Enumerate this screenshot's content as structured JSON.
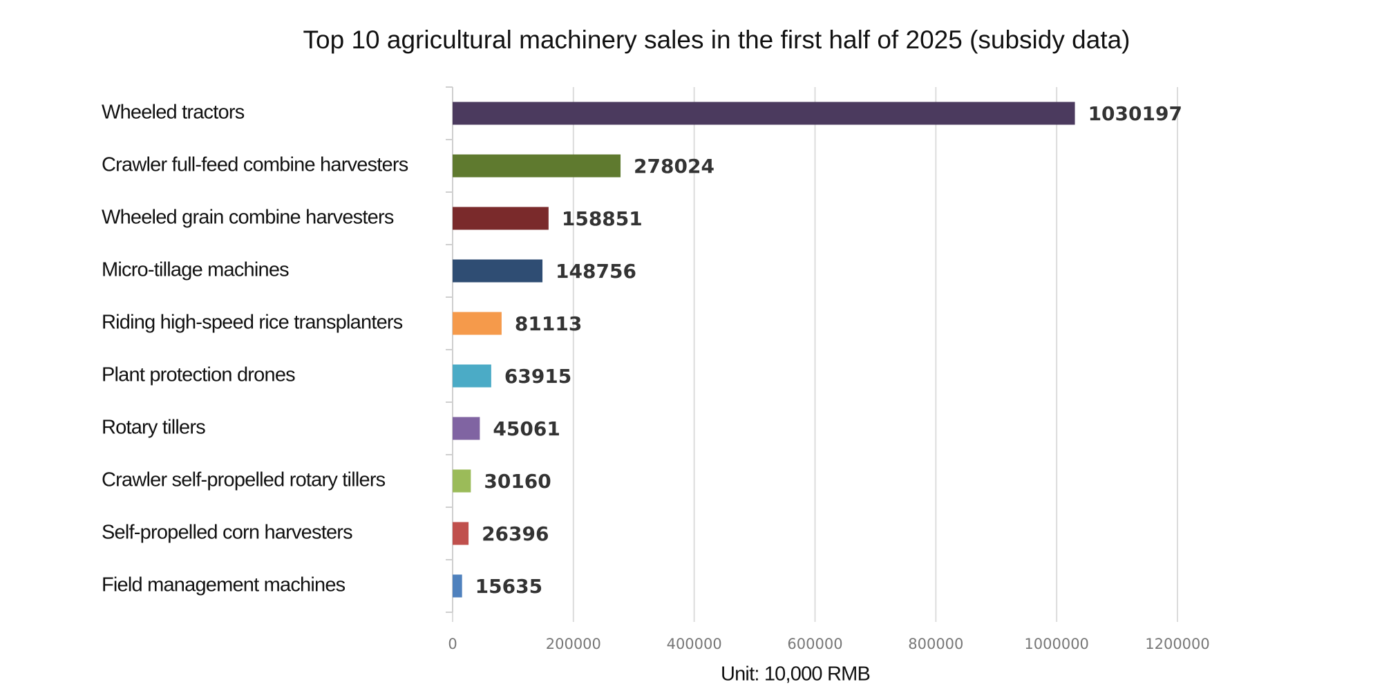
{
  "chart_data": {
    "type": "bar",
    "orientation": "horizontal",
    "title": "Top 10 agricultural machinery sales in the first half of 2025 (subsidy data)",
    "xlabel": "Unit: 10,000 RMB",
    "categories": [
      "Wheeled tractors",
      "Crawler full-feed combine harvesters",
      "Wheeled grain combine harvesters",
      "Micro-tillage machines",
      "Riding high-speed rice transplanters",
      "Plant protection drones",
      "Rotary tillers",
      "Crawler self-propelled rotary tillers",
      "Self-propelled corn harvesters",
      "Field management machines"
    ],
    "values": [
      1030197,
      278024,
      158851,
      148756,
      81113,
      63915,
      45061,
      30160,
      26396,
      15635
    ],
    "colors": [
      "#4b3a5e",
      "#5f7a2f",
      "#7a2a2b",
      "#2f4d73",
      "#f59a4b",
      "#4babc6",
      "#8064a2",
      "#9bbb59",
      "#c0504d",
      "#4f81bd"
    ],
    "xlim": [
      0,
      1200000
    ],
    "xticks": [
      0,
      200000,
      400000,
      600000,
      800000,
      1000000,
      1200000
    ],
    "grid": true
  }
}
